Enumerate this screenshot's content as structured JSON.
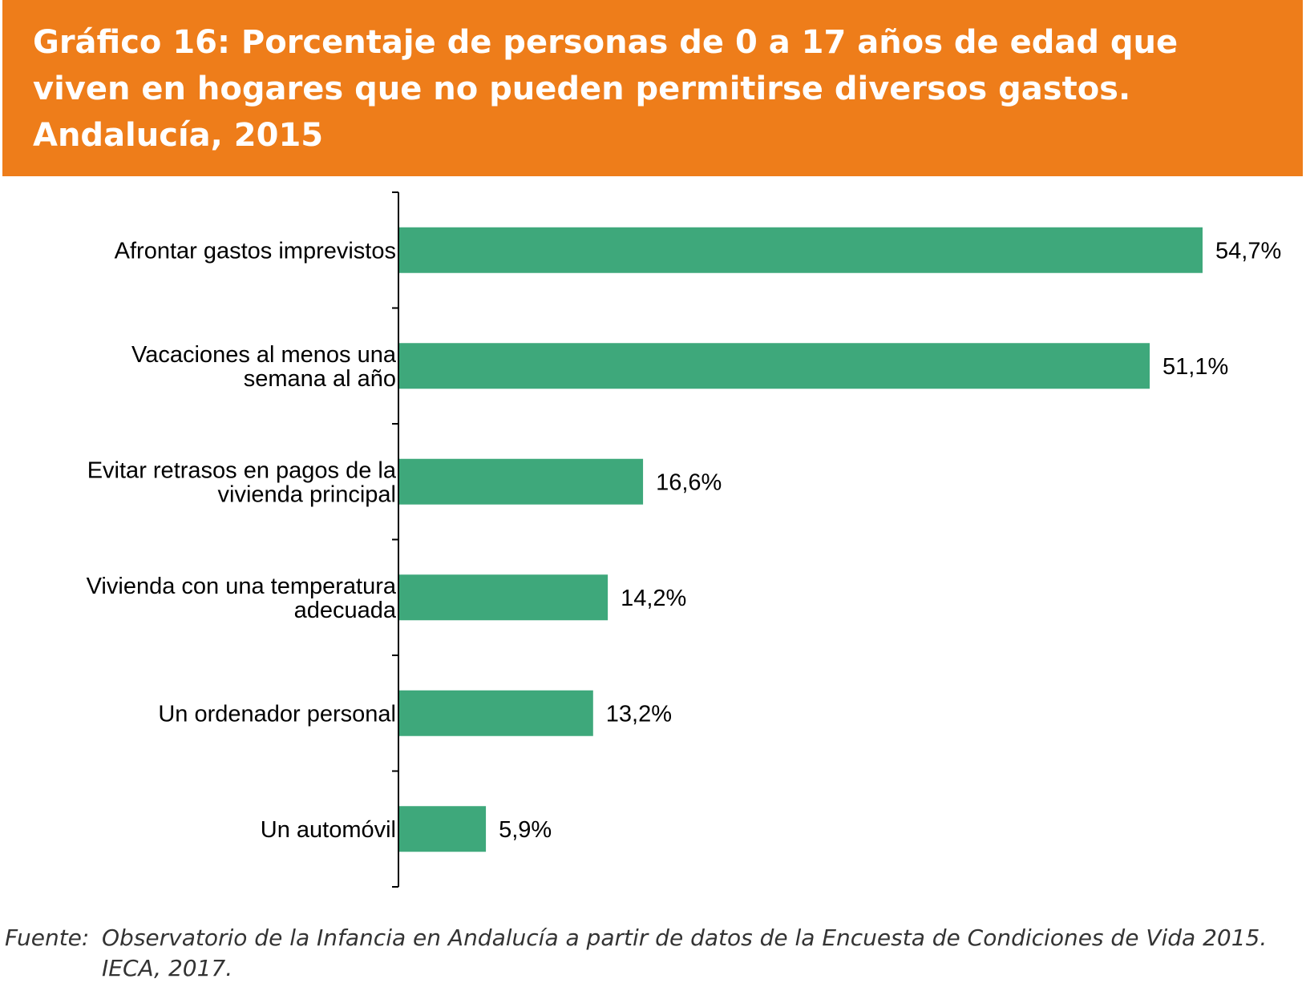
{
  "header": {
    "title": "Gráfico 16: Porcentaje de personas de 0 a 17 años de edad que\nviven en hogares que no pueden permitirse diversos gastos.\nAndalucía, 2015"
  },
  "chart_data": {
    "type": "bar",
    "orientation": "horizontal",
    "categories": [
      [
        "Afrontar gastos imprevistos"
      ],
      [
        "Vacaciones al menos una",
        "semana al año"
      ],
      [
        "Evitar retrasos en  pagos de la",
        "vivienda principal"
      ],
      [
        "Vivienda con una temperatura",
        "adecuada"
      ],
      [
        "Un ordenador personal"
      ],
      [
        "Un automóvil"
      ]
    ],
    "values": [
      54.7,
      51.1,
      16.6,
      14.2,
      13.2,
      5.9
    ],
    "value_labels": [
      "54,7%",
      "51,1%",
      "16,6%",
      "14,2%",
      "13,2%",
      "5,9%"
    ],
    "xlim": [
      0,
      60
    ],
    "grid": false,
    "legend": "none",
    "bar_color": "#3EA87B"
  },
  "source": {
    "label": "Fuente:",
    "text": "Observatorio de la Infancia en Andalucía a partir de datos de la Encuesta de Condiciones de Vida 2015. IECA, 2017."
  },
  "colors": {
    "header_bg": "#EE7D1A",
    "bar": "#3EA87B"
  }
}
